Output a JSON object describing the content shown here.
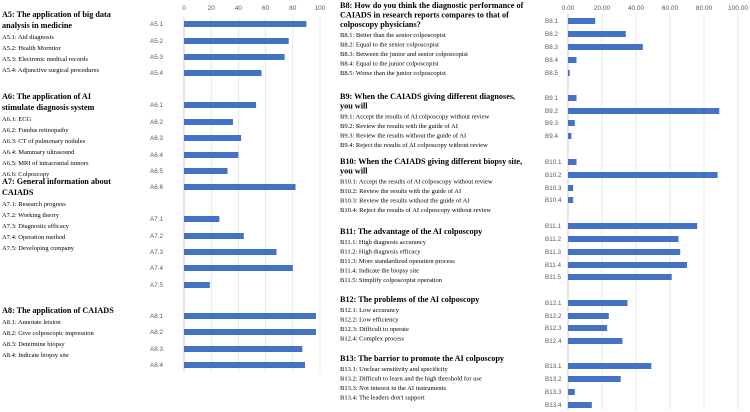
{
  "panels": [
    {
      "sections": [
        {
          "title_lines": [
            "A5: The application of big data",
            "analysis in medicine"
          ],
          "items": [
            "A5.1: Aid diagnosis",
            "A5.2: Health Mornitor",
            "A5.3: Electronic medical records",
            "A5.4: Adjunctive surgical procedures"
          ]
        },
        {
          "title_lines": [
            "A6: The application of AI",
            "stimulate diagnosis system"
          ],
          "items": [
            "A6.1: ECG",
            "A6.2: Fundus retinopathy",
            "A6.3: CT of pulmonary nodules",
            "A6.4: Mammary ultrasound",
            "A6.5: MRI of intracranial tumors",
            "A6.6: Colposcopy"
          ]
        },
        {
          "title_lines": [
            "A7: General information about",
            "CAIADS"
          ],
          "items": [
            "A7.1: Research progress",
            "A7.2: Working theory",
            "A7.3: Diagnostic efficacy",
            "A7.4: Operation method",
            "A7.5: Developing company"
          ]
        },
        {
          "title_lines": [
            "A8: The application of CAIADS"
          ],
          "items": [
            "A8.1: Annotate leision",
            "A8.2: Give colposcopic impression",
            "A8.3: Determine biopsy",
            "A8.4: Indicate biopsy site"
          ]
        }
      ]
    },
    {
      "sections": [
        {
          "title_lines": [
            "B8: How do you think the diagnostic performance of",
            "CAIADS in research reports compares to that of",
            "colposcopy physicians?"
          ],
          "items": [
            "B8.1: Better than the senior colposcopist",
            "B8.2: Equal to the senior colposcopist",
            "B8.3: Between the junior and senior colposcopist",
            "B8.4: Equal to the junior colposcopist",
            "B8.5: Worse than the junior colposcopist"
          ]
        },
        {
          "title_lines": [
            "B9: When the CAIADS giving different diagnoses,",
            "you will"
          ],
          "items": [
            "B9.1: Accept the results of AI colposcopy without review",
            "B9.2: Review the results with the guide of AI",
            "B9.3: Review the results without the guide of AI",
            "B9.4: Reject the results of AI colposcopy without review"
          ]
        },
        {
          "title_lines": [
            "B10: When the CAIADS giving different biopsy site,",
            "you will"
          ],
          "items": [
            "B10.1: Accept the results of AI colposcopy without review",
            "B10.2: Review the results with the guide of AI",
            "B10.3: Review the results without the guide of AI",
            "B10.4: Reject the results of AI colposcopy without review"
          ]
        },
        {
          "title_lines": [
            "B11: The advantage of the AI colposcopy"
          ],
          "items": [
            "B11.1: High diagnosis accurancy",
            "B11.2: High diagnosis efficacy",
            "B11.3: More standardized operation process",
            "B11.4: Indicate the biopsy site",
            "B11.5: Simplify colposcopist operation"
          ]
        },
        {
          "title_lines": [
            "B12: The problems of the AI colposcopy"
          ],
          "items": [
            "B12.1: Low accurancy",
            "B12.2: Low efficiency",
            "B12.3: Difficult to operate",
            "B12.4: Complex process"
          ]
        },
        {
          "title_lines": [
            "B13: The barrior to promote the AI colposcopy"
          ],
          "items": [
            "B13.1: Unclear sensitivity and specificity",
            "B13.2: Difficult to learn and the high threshold for use",
            "B13.3: Not interest in the AI instruments",
            "B13.4: The leaders don't support"
          ]
        }
      ]
    }
  ],
  "chart_data": [
    {
      "type": "bar",
      "orientation": "horizontal",
      "xlim": [
        0,
        100
      ],
      "x_ticks": [
        "0",
        "20",
        "40",
        "60",
        "80",
        "100"
      ],
      "grid": true,
      "categories": [
        "A5.1",
        "A5.2",
        "A5.3",
        "A5.4",
        "A6.1",
        "A6.2",
        "A6.3",
        "A6.4",
        "A6.5",
        "A6.6",
        "A7.1",
        "A7.2",
        "A7.3",
        "A7.4",
        "A7.5",
        "A8.1",
        "A8.2",
        "A8.3",
        "A8.4"
      ],
      "values": [
        90,
        77,
        74,
        57,
        53,
        36,
        42,
        40,
        32,
        82,
        26,
        44,
        68,
        80,
        19,
        97,
        97,
        87,
        89
      ],
      "title": "",
      "xlabel": "",
      "ylabel": ""
    },
    {
      "type": "bar",
      "orientation": "horizontal",
      "xlim": [
        0,
        100
      ],
      "x_ticks": [
        "0.00",
        "20.00",
        "40.00",
        "60.00",
        "80.00",
        "100.00"
      ],
      "grid": true,
      "categories": [
        "B8.1",
        "B8.2",
        "B8.3",
        "B8.4",
        "B8.5",
        "B9.1",
        "B9.2",
        "B9.3",
        "B9.4",
        "B10.1",
        "B10.2",
        "B10.3",
        "B10.4",
        "B11.1",
        "B11.2",
        "B11.3",
        "B11.4",
        "B11.5",
        "B12.1",
        "B12.2",
        "B12.3",
        "B12.4",
        "B13.1",
        "B13.2",
        "B13.3",
        "B13.4"
      ],
      "values": [
        16,
        34,
        44,
        5,
        1,
        5,
        89,
        4,
        2,
        5,
        88,
        3,
        3,
        76,
        65,
        66,
        70,
        61,
        35,
        24,
        23,
        32,
        49,
        31,
        4,
        14
      ],
      "title": "",
      "xlabel": "",
      "ylabel": ""
    }
  ]
}
